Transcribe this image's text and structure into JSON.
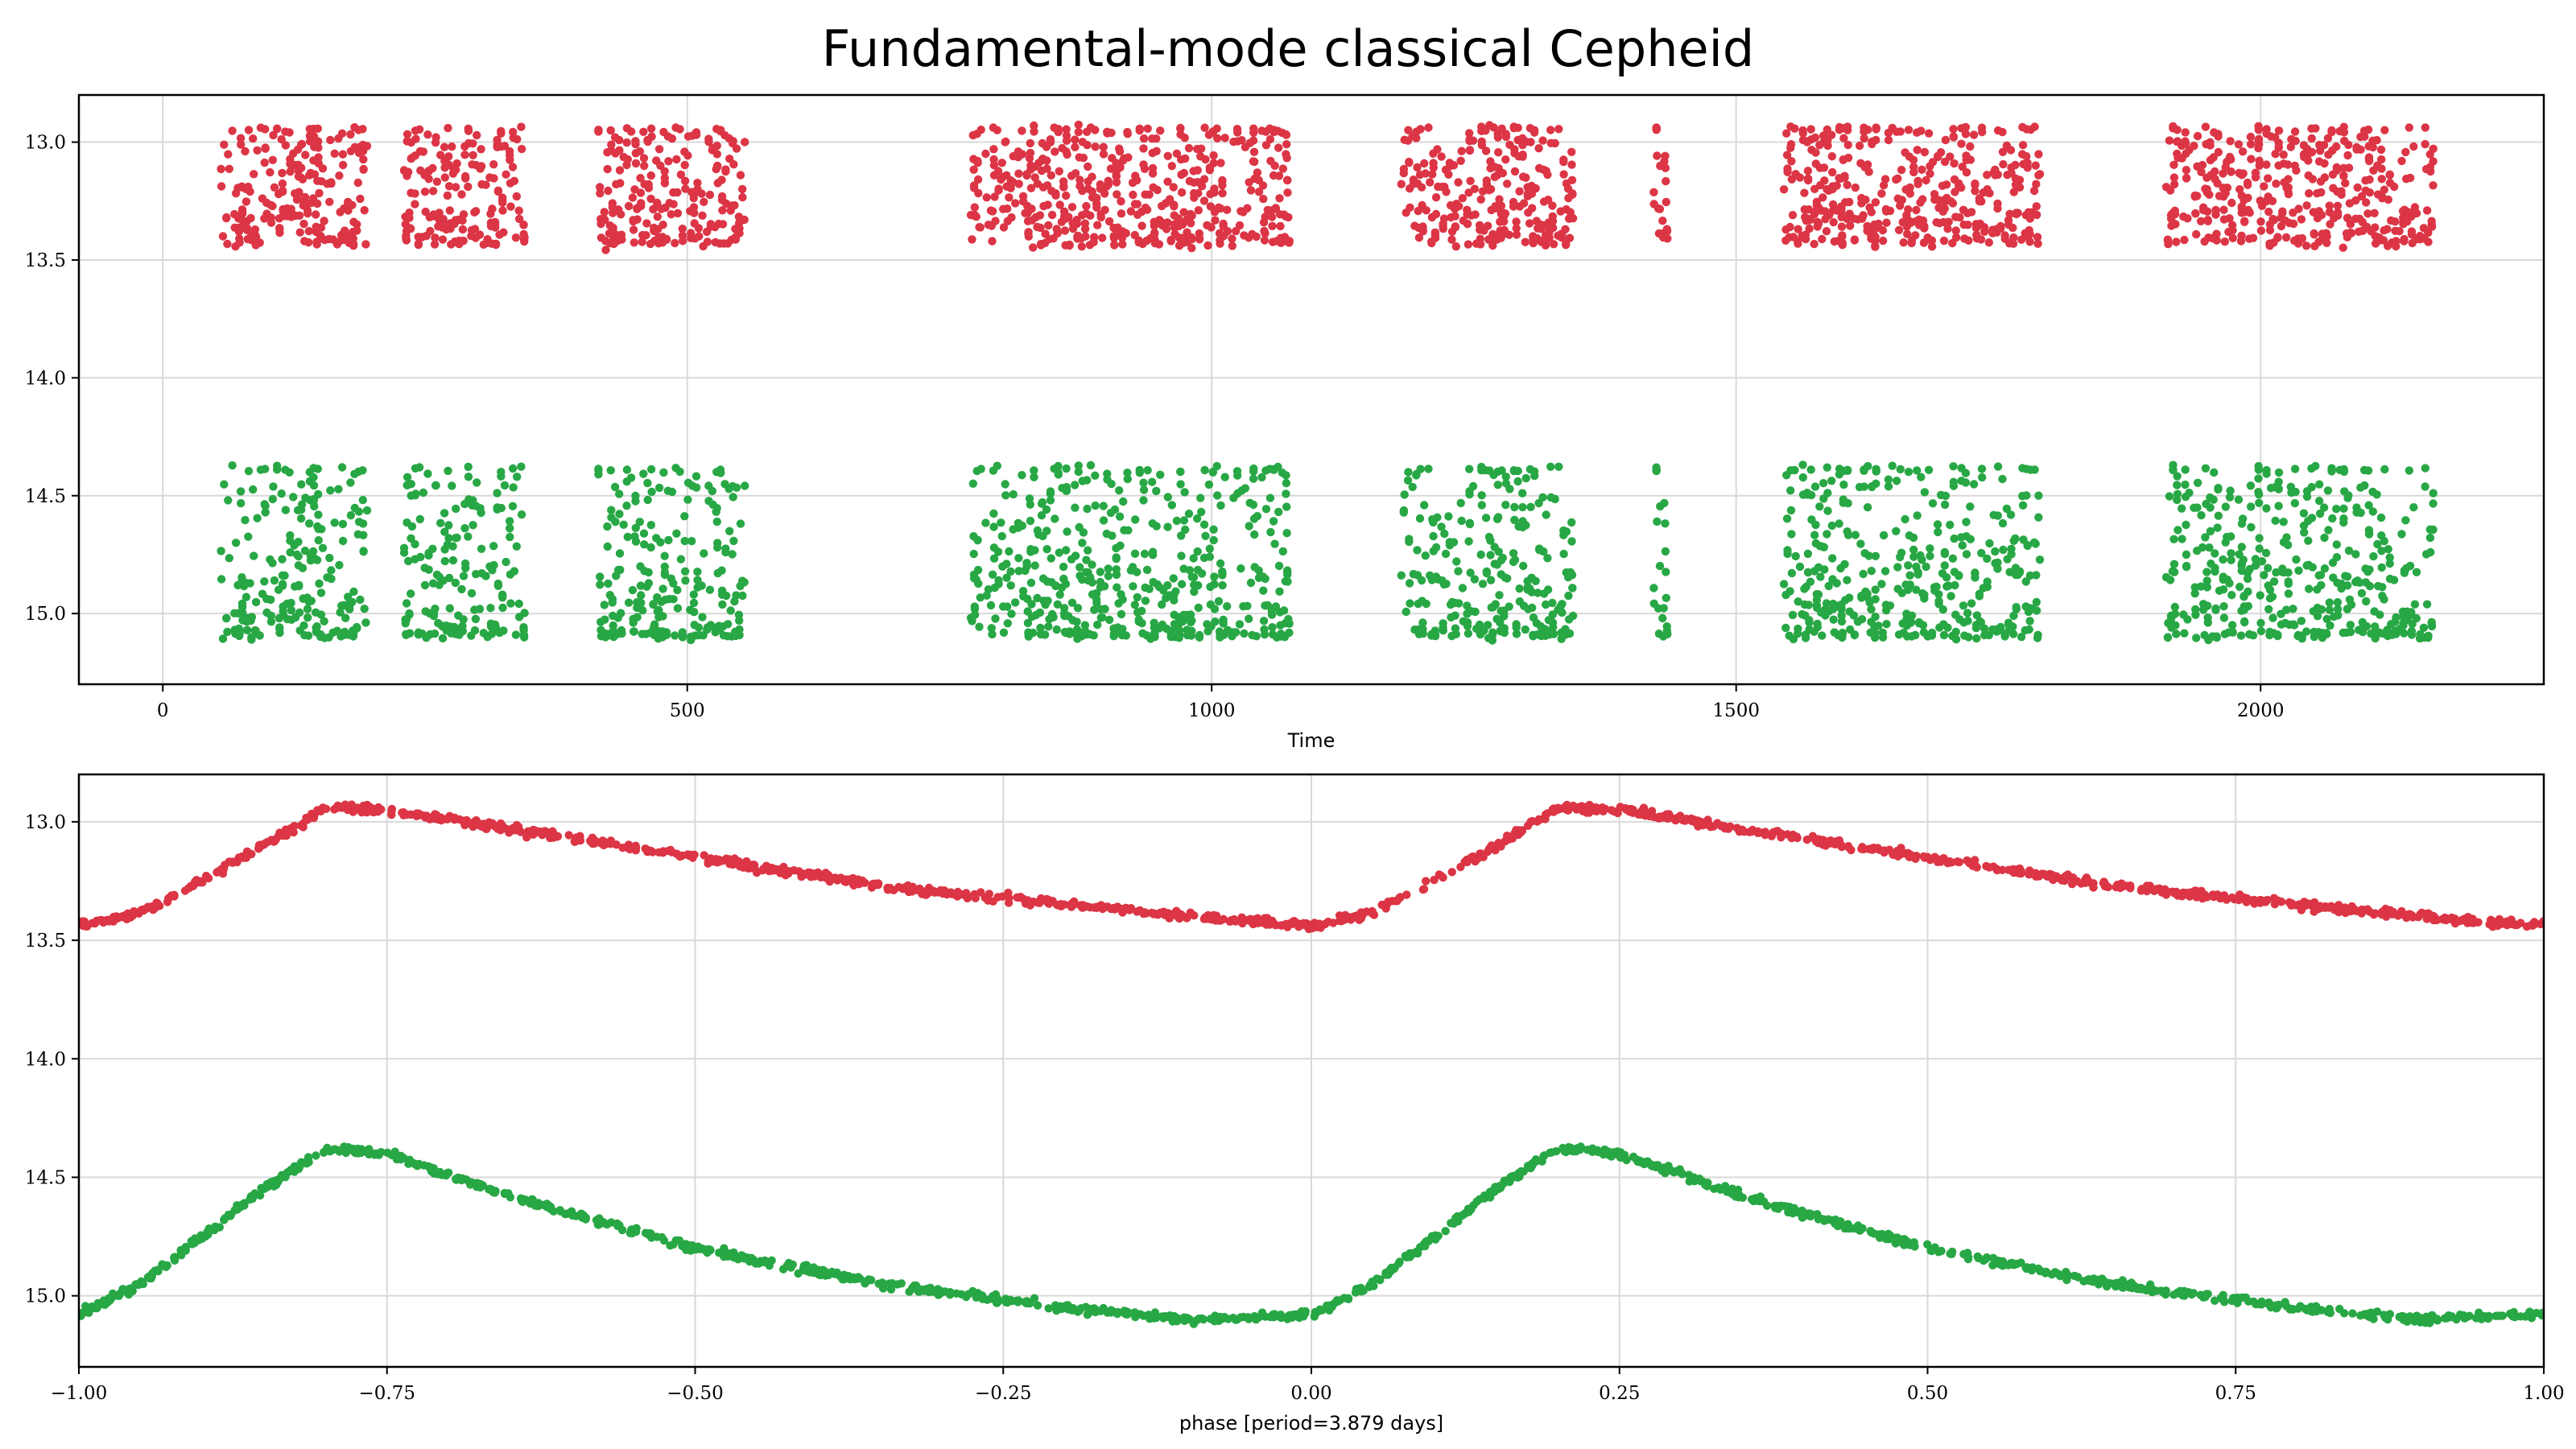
{
  "title": "Fundamental-mode classical Cepheid",
  "colors": {
    "band_a": "#dc3545",
    "band_b": "#28a745",
    "grid": "#d9d9d9"
  },
  "chart_data": [
    {
      "type": "scatter",
      "xlabel": "Time",
      "ylabel": "",
      "xlim": [
        -80,
        2270
      ],
      "ylim": [
        15.3,
        12.8
      ],
      "y_inverted": true,
      "grid": true,
      "xticks": [
        0,
        500,
        1000,
        1500,
        2000
      ],
      "xtick_labels": [
        "0",
        "500",
        "1000",
        "1500",
        "2000"
      ],
      "yticks": [
        13.0,
        13.5,
        14.0,
        14.5,
        15.0
      ],
      "ytick_labels": [
        "13.0",
        "13.5",
        "14.0",
        "14.5",
        "15.0"
      ],
      "period_days": 3.879,
      "observing_seasons": [
        [
          55,
          195
        ],
        [
          230,
          345
        ],
        [
          415,
          555
        ],
        [
          770,
          1075
        ],
        [
          1180,
          1345
        ],
        [
          1420,
          1435
        ],
        [
          1545,
          1790
        ],
        [
          1910,
          2165
        ]
      ],
      "series": [
        {
          "color": "#dc3545",
          "mag_bright": 12.93,
          "mag_faint": 13.45
        },
        {
          "color": "#28a745",
          "mag_bright": 14.35,
          "mag_faint": 15.12
        }
      ]
    },
    {
      "type": "scatter",
      "xlabel": "phase [period=3.879 days]",
      "ylabel": "",
      "xlim": [
        -1.0,
        1.0
      ],
      "ylim": [
        15.3,
        12.8
      ],
      "y_inverted": true,
      "grid": true,
      "xticks": [
        -1.0,
        -0.75,
        -0.5,
        -0.25,
        0.0,
        0.25,
        0.5,
        0.75,
        1.0
      ],
      "xtick_labels": [
        "−1.00",
        "−0.75",
        "−0.50",
        "−0.25",
        "0.00",
        "0.25",
        "0.50",
        "0.75",
        "1.00"
      ],
      "yticks": [
        13.0,
        13.5,
        14.0,
        14.5,
        15.0
      ],
      "ytick_labels": [
        "13.0",
        "13.5",
        "14.0",
        "14.5",
        "15.0"
      ],
      "series": [
        {
          "color": "#dc3545",
          "curve": [
            [
              0.0,
              13.44
            ],
            [
              0.05,
              13.38
            ],
            [
              0.1,
              13.25
            ],
            [
              0.15,
              13.1
            ],
            [
              0.2,
              12.94
            ],
            [
              0.25,
              12.95
            ],
            [
              0.35,
              13.03
            ],
            [
              0.5,
              13.15
            ],
            [
              0.65,
              13.27
            ],
            [
              0.8,
              13.35
            ],
            [
              0.9,
              13.4
            ],
            [
              1.0,
              13.44
            ]
          ]
        },
        {
          "color": "#28a745",
          "curve": [
            [
              0.0,
              15.08
            ],
            [
              0.05,
              14.95
            ],
            [
              0.1,
              14.75
            ],
            [
              0.15,
              14.55
            ],
            [
              0.2,
              14.38
            ],
            [
              0.25,
              14.4
            ],
            [
              0.35,
              14.58
            ],
            [
              0.5,
              14.8
            ],
            [
              0.65,
              14.95
            ],
            [
              0.8,
              15.05
            ],
            [
              0.9,
              15.1
            ],
            [
              1.0,
              15.08
            ]
          ]
        }
      ]
    }
  ]
}
